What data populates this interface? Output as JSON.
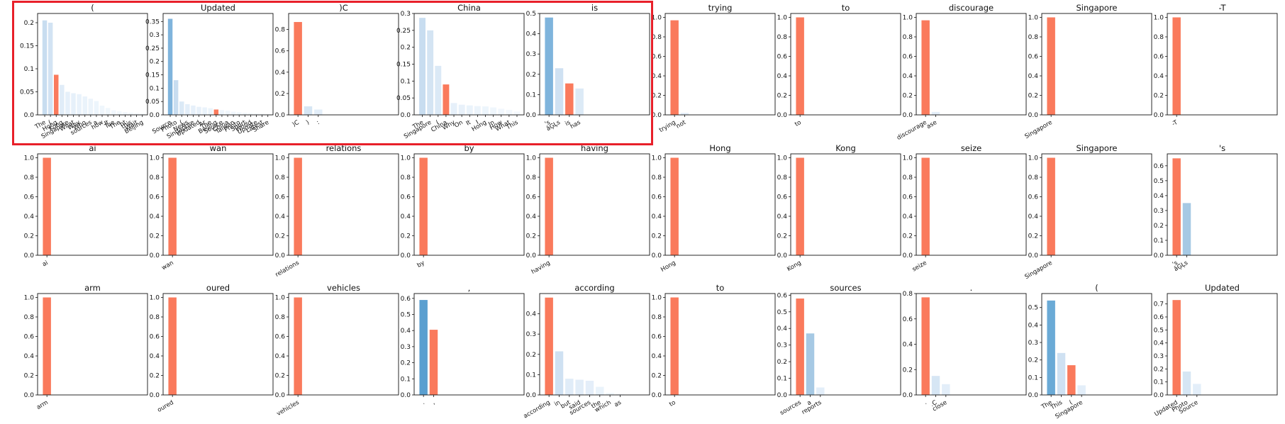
{
  "colors": {
    "highlight": "#e8202a",
    "target": "#fa7a5c"
  },
  "chart_data": [
    {
      "title": "(",
      "type": "bar",
      "ylim": [
        0,
        0.22
      ],
      "yticks": [
        0,
        0.05,
        0.1,
        0.15,
        0.2
      ],
      "categories": [
        "The",
        "(",
        "Hong",
        "Kong",
        "Singapore",
        "What",
        "Why",
        "Who",
        "sources",
        "a",
        "how",
        "It",
        "Tue",
        "The",
        "ht",
        "this",
        "Wait",
        "Beijing"
      ],
      "values": [
        0.205,
        0.2,
        0.087,
        0.065,
        0.05,
        0.047,
        0.045,
        0.04,
        0.035,
        0.03,
        0.02,
        0.015,
        0.01,
        0.008,
        0.006,
        0.005,
        0.004,
        0.003
      ],
      "colors": [
        "#c8ddf0",
        "#d2e3f3",
        "#fa7a5c",
        "#e0ecf8",
        "#e6f0fa",
        "#e6f0fa",
        "#e9f2fb",
        "#eaf3fb",
        "#ecf4fb",
        "#edf5fc",
        "#eff6fc",
        "#f0f7fc",
        "#f1f7fd",
        "#f2f8fd",
        "#f3f8fd",
        "#f4f9fd",
        "#f5f9fe",
        "#f6fafe"
      ]
    },
    {
      "title": "Updated",
      "type": "bar",
      "ylim": [
        0,
        0.38
      ],
      "yticks": [
        0,
        0.05,
        0.1,
        0.15,
        0.2,
        0.25,
        0.3,
        0.35
      ],
      "categories": [
        "Source",
        "Photo",
        "(",
        "News",
        "Singapore",
        "Updated",
        "Ar",
        "The",
        "Beijing",
        "Source",
        "China",
        "Taiwan",
        "Photo",
        "Sport",
        "World",
        "Update",
        "Latest",
        "Share"
      ],
      "values": [
        0.36,
        0.13,
        0.05,
        0.04,
        0.035,
        0.03,
        0.028,
        0.025,
        0.02,
        0.018,
        0.016,
        0.012,
        0.01,
        0.008,
        0.007,
        0.006,
        0.005,
        0.004
      ],
      "colors": [
        "#7fb4dc",
        "#c8ddf0",
        "#dbe9f6",
        "#e3eef9",
        "#e6f0fa",
        "#e8f1fa",
        "#eaf3fb",
        "#ecf4fb",
        "#fa7a5c",
        "#eef5fc",
        "#f0f6fc",
        "#f1f7fd",
        "#f2f8fd",
        "#f3f8fd",
        "#f4f9fd",
        "#f5f9fe",
        "#f6fafe",
        "#f7fbfe"
      ]
    },
    {
      "title": ")C",
      "type": "bar",
      "ylim": [
        0,
        0.95
      ],
      "yticks": [
        0,
        0.2,
        0.4,
        0.6,
        0.8
      ],
      "categories": [
        ")C",
        ")",
        ":"
      ],
      "values": [
        0.87,
        0.08,
        0.05
      ],
      "colors": [
        "#fa7a5c",
        "#d6e6f4",
        "#e3eef9"
      ]
    },
    {
      "title": "China",
      "type": "bar",
      "ylim": [
        0,
        0.3
      ],
      "yticks": [
        0,
        0.05,
        0.1,
        0.15,
        0.2,
        0.25,
        0.3
      ],
      "categories": [
        "The",
        "Singapore",
        "(",
        "China",
        "Why",
        "On",
        "It",
        "I",
        "Hong",
        "In",
        "How",
        "What",
        "This"
      ],
      "values": [
        0.287,
        0.25,
        0.145,
        0.09,
        0.035,
        0.03,
        0.028,
        0.026,
        0.025,
        0.022,
        0.018,
        0.015,
        0.01
      ],
      "colors": [
        "#c8ddf0",
        "#d4e4f3",
        "#dbe9f6",
        "#fa7a5c",
        "#e6f0fa",
        "#e8f1fa",
        "#eaf3fb",
        "#ecf4fb",
        "#edf5fc",
        "#eff6fc",
        "#f1f7fd",
        "#f3f8fd",
        "#f5f9fe"
      ]
    },
    {
      "title": "is",
      "type": "bar",
      "ylim": [
        0,
        0.5
      ],
      "yticks": [
        0,
        0.1,
        0.2,
        0.3,
        0.4,
        0.5
      ],
      "categories": [
        "'s",
        "âĢĻs",
        "is",
        "has"
      ],
      "values": [
        0.48,
        0.23,
        0.155,
        0.13
      ],
      "colors": [
        "#7fb4dc",
        "#cfe1f2",
        "#fa7a5c",
        "#dceaf6"
      ]
    },
    {
      "title": "trying",
      "type": "bar",
      "ylim": [
        0,
        1.04
      ],
      "yticks": [
        0,
        0.2,
        0.4,
        0.6,
        0.8,
        1.0
      ],
      "categories": [
        "trying",
        "not"
      ],
      "values": [
        0.97,
        0.02
      ],
      "colors": [
        "#fa7a5c",
        "#e3eef9"
      ]
    },
    {
      "title": "to",
      "type": "bar",
      "ylim": [
        0,
        1.04
      ],
      "yticks": [
        0,
        0.2,
        0.4,
        0.6,
        0.8,
        1.0
      ],
      "categories": [
        "to"
      ],
      "values": [
        1.0
      ],
      "colors": [
        "#fa7a5c"
      ]
    },
    {
      "title": "discourage",
      "type": "bar",
      "ylim": [
        0,
        1.04
      ],
      "yticks": [
        0,
        0.2,
        0.4,
        0.6,
        0.8,
        1.0
      ],
      "categories": [
        "discourage",
        "ase"
      ],
      "values": [
        0.97,
        0.03
      ],
      "colors": [
        "#fa7a5c",
        "#e3eef9"
      ]
    },
    {
      "title": "Singapore",
      "type": "bar",
      "ylim": [
        0,
        1.04
      ],
      "yticks": [
        0,
        0.2,
        0.4,
        0.6,
        0.8,
        1.0
      ],
      "categories": [
        "Singapore"
      ],
      "values": [
        1.0
      ],
      "colors": [
        "#fa7a5c"
      ]
    },
    {
      "title": "-T",
      "type": "bar",
      "ylim": [
        0,
        1.04
      ],
      "yticks": [
        0,
        0.2,
        0.4,
        0.6,
        0.8,
        1.0
      ],
      "categories": [
        "-T"
      ],
      "values": [
        1.0
      ],
      "colors": [
        "#fa7a5c"
      ]
    },
    {
      "title": "ai",
      "type": "bar",
      "ylim": [
        0,
        1.04
      ],
      "yticks": [
        0,
        0.2,
        0.4,
        0.6,
        0.8,
        1.0
      ],
      "categories": [
        "ai"
      ],
      "values": [
        1.0
      ],
      "colors": [
        "#fa7a5c"
      ]
    },
    {
      "title": "wan",
      "type": "bar",
      "ylim": [
        0,
        1.04
      ],
      "yticks": [
        0,
        0.2,
        0.4,
        0.6,
        0.8,
        1.0
      ],
      "categories": [
        "wan"
      ],
      "values": [
        1.0
      ],
      "colors": [
        "#fa7a5c"
      ]
    },
    {
      "title": "relations",
      "type": "bar",
      "ylim": [
        0,
        1.04
      ],
      "yticks": [
        0,
        0.2,
        0.4,
        0.6,
        0.8,
        1.0
      ],
      "categories": [
        "relations"
      ],
      "values": [
        1.0
      ],
      "colors": [
        "#fa7a5c"
      ]
    },
    {
      "title": "by",
      "type": "bar",
      "ylim": [
        0,
        1.04
      ],
      "yticks": [
        0,
        0.2,
        0.4,
        0.6,
        0.8,
        1.0
      ],
      "categories": [
        "by"
      ],
      "values": [
        1.0
      ],
      "colors": [
        "#fa7a5c"
      ]
    },
    {
      "title": "having",
      "type": "bar",
      "ylim": [
        0,
        1.04
      ],
      "yticks": [
        0,
        0.2,
        0.4,
        0.6,
        0.8,
        1.0
      ],
      "categories": [
        "having"
      ],
      "values": [
        1.0
      ],
      "colors": [
        "#fa7a5c"
      ]
    },
    {
      "title": "Hong",
      "type": "bar",
      "ylim": [
        0,
        1.04
      ],
      "yticks": [
        0,
        0.2,
        0.4,
        0.6,
        0.8,
        1.0
      ],
      "categories": [
        "Hong"
      ],
      "values": [
        1.0
      ],
      "colors": [
        "#fa7a5c"
      ]
    },
    {
      "title": "Kong",
      "type": "bar",
      "ylim": [
        0,
        1.04
      ],
      "yticks": [
        0,
        0.2,
        0.4,
        0.6,
        0.8,
        1.0
      ],
      "categories": [
        "Kong"
      ],
      "values": [
        1.0
      ],
      "colors": [
        "#fa7a5c"
      ]
    },
    {
      "title": "seize",
      "type": "bar",
      "ylim": [
        0,
        1.04
      ],
      "yticks": [
        0,
        0.2,
        0.4,
        0.6,
        0.8,
        1.0
      ],
      "categories": [
        "seize"
      ],
      "values": [
        1.0
      ],
      "colors": [
        "#fa7a5c"
      ]
    },
    {
      "title": "Singapore",
      "type": "bar",
      "ylim": [
        0,
        1.04
      ],
      "yticks": [
        0,
        0.2,
        0.4,
        0.6,
        0.8,
        1.0
      ],
      "categories": [
        "Singapore"
      ],
      "values": [
        1.0
      ],
      "colors": [
        "#fa7a5c"
      ]
    },
    {
      "title": "'s",
      "type": "bar",
      "ylim": [
        0,
        0.68
      ],
      "yticks": [
        0,
        0.1,
        0.2,
        0.3,
        0.4,
        0.5,
        0.6
      ],
      "categories": [
        "'s",
        "âĢĻs"
      ],
      "values": [
        0.65,
        0.35
      ],
      "colors": [
        "#fa7a5c",
        "#a6c9e4"
      ]
    },
    {
      "title": "arm",
      "type": "bar",
      "ylim": [
        0,
        1.04
      ],
      "yticks": [
        0,
        0.2,
        0.4,
        0.6,
        0.8,
        1.0
      ],
      "categories": [
        "arm"
      ],
      "values": [
        1.0
      ],
      "colors": [
        "#fa7a5c"
      ]
    },
    {
      "title": "oured",
      "type": "bar",
      "ylim": [
        0,
        1.04
      ],
      "yticks": [
        0,
        0.2,
        0.4,
        0.6,
        0.8,
        1.0
      ],
      "categories": [
        "oured"
      ],
      "values": [
        1.0
      ],
      "colors": [
        "#fa7a5c"
      ]
    },
    {
      "title": "vehicles",
      "type": "bar",
      "ylim": [
        0,
        1.04
      ],
      "yticks": [
        0,
        0.2,
        0.4,
        0.6,
        0.8,
        1.0
      ],
      "categories": [
        "vehicles"
      ],
      "values": [
        1.0
      ],
      "colors": [
        "#fa7a5c"
      ]
    },
    {
      "title": ",",
      "type": "bar",
      "ylim": [
        0,
        0.63
      ],
      "yticks": [
        0,
        0.1,
        0.2,
        0.3,
        0.4,
        0.5,
        0.6
      ],
      "categories": [
        ".",
        ","
      ],
      "values": [
        0.59,
        0.405
      ],
      "colors": [
        "#5a9fd0",
        "#fa7a5c"
      ]
    },
    {
      "title": "according",
      "type": "bar",
      "ylim": [
        0,
        0.5
      ],
      "yticks": [
        0,
        0.1,
        0.2,
        0.3,
        0.4
      ],
      "categories": [
        "according",
        "in",
        "but",
        "said",
        "sources",
        "the",
        "which",
        "as"
      ],
      "values": [
        0.48,
        0.215,
        0.08,
        0.075,
        0.07,
        0.04,
        0.01,
        0.005
      ],
      "colors": [
        "#fa7a5c",
        "#cfe1f2",
        "#e0ecf8",
        "#e2edf8",
        "#e4eef9",
        "#eaf3fb",
        "#f1f7fd",
        "#f4f9fd"
      ]
    },
    {
      "title": "to",
      "type": "bar",
      "ylim": [
        0,
        1.04
      ],
      "yticks": [
        0,
        0.2,
        0.4,
        0.6,
        0.8,
        1.0
      ],
      "categories": [
        "to"
      ],
      "values": [
        1.0
      ],
      "colors": [
        "#fa7a5c"
      ]
    },
    {
      "title": "sources",
      "type": "bar",
      "ylim": [
        0,
        0.61
      ],
      "yticks": [
        0,
        0.1,
        0.2,
        0.3,
        0.4,
        0.5,
        0.6
      ],
      "categories": [
        "sources",
        "a",
        "reports"
      ],
      "values": [
        0.58,
        0.37,
        0.045
      ],
      "colors": [
        "#fa7a5c",
        "#a6c9e4",
        "#e3eef9"
      ]
    },
    {
      "title": ".",
      "type": "bar",
      "ylim": [
        0,
        0.8
      ],
      "yticks": [
        0,
        0.2,
        0.4,
        0.6,
        0.8
      ],
      "categories": [
        ".",
        ".C",
        "close"
      ],
      "values": [
        0.77,
        0.15,
        0.085
      ],
      "colors": [
        "#fa7a5c",
        "#d6e6f4",
        "#e3eef9"
      ]
    },
    {
      "title": "(",
      "type": "bar",
      "ylim": [
        0,
        0.58
      ],
      "yticks": [
        0,
        0.1,
        0.2,
        0.3,
        0.4,
        0.5
      ],
      "categories": [
        "The",
        "This",
        "(",
        "Singapore"
      ],
      "values": [
        0.54,
        0.24,
        0.17,
        0.055
      ],
      "colors": [
        "#6aaad6",
        "#cfe1f2",
        "#fa7a5c",
        "#e3eef9"
      ]
    },
    {
      "title": "Updated",
      "type": "bar",
      "ylim": [
        0,
        0.78
      ],
      "yticks": [
        0,
        0.1,
        0.2,
        0.3,
        0.4,
        0.5,
        0.6,
        0.7
      ],
      "categories": [
        "Updated",
        "Photo",
        "Source"
      ],
      "values": [
        0.73,
        0.18,
        0.085
      ],
      "colors": [
        "#fa7a5c",
        "#d6e6f4",
        "#e3eef9"
      ]
    }
  ]
}
